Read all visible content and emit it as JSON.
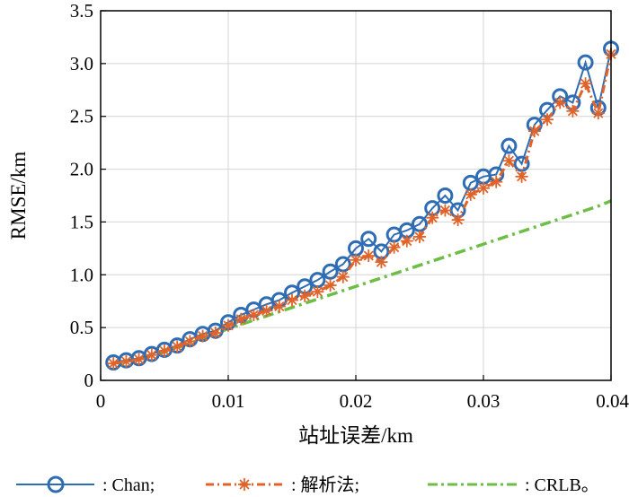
{
  "chart_data": {
    "type": "line",
    "xlabel": "站址误差/km",
    "ylabel": "RMSE/km",
    "xlim": [
      0,
      0.04
    ],
    "ylim": [
      0,
      3.5
    ],
    "x_ticks": [
      "0",
      "0.01",
      "0.02",
      "0.03",
      "0.04"
    ],
    "y_ticks": [
      "0",
      "0.5",
      "1.0",
      "1.5",
      "2.0",
      "2.5",
      "3.0",
      "3.5"
    ],
    "grid": true,
    "legend_position": "bottom",
    "x": [
      0.001,
      0.002,
      0.003,
      0.004,
      0.005,
      0.006,
      0.007,
      0.008,
      0.009,
      0.01,
      0.011,
      0.012,
      0.013,
      0.014,
      0.015,
      0.016,
      0.017,
      0.018,
      0.019,
      0.02,
      0.021,
      0.022,
      0.023,
      0.024,
      0.025,
      0.026,
      0.027,
      0.028,
      0.029,
      0.03,
      0.031,
      0.032,
      0.033,
      0.034,
      0.035,
      0.036,
      0.037,
      0.038,
      0.039,
      0.04
    ],
    "series": [
      {
        "name": "Chan",
        "legend_label": ": Chan;",
        "color": "#2E6DB4",
        "marker": "circle",
        "values": [
          0.17,
          0.19,
          0.21,
          0.25,
          0.29,
          0.33,
          0.39,
          0.44,
          0.47,
          0.55,
          0.62,
          0.67,
          0.72,
          0.76,
          0.83,
          0.89,
          0.95,
          1.03,
          1.1,
          1.25,
          1.34,
          1.22,
          1.38,
          1.42,
          1.48,
          1.63,
          1.75,
          1.61,
          1.87,
          1.93,
          1.95,
          2.22,
          2.05,
          2.42,
          2.56,
          2.69,
          2.63,
          3.01,
          2.58,
          3.14
        ]
      },
      {
        "name": "解析法",
        "legend_label": ": 解析法;",
        "color": "#E0642A",
        "marker": "asterisk",
        "values": [
          0.16,
          0.18,
          0.2,
          0.24,
          0.28,
          0.32,
          0.37,
          0.42,
          0.45,
          0.52,
          0.58,
          0.62,
          0.66,
          0.7,
          0.76,
          0.8,
          0.84,
          0.9,
          0.98,
          1.14,
          1.18,
          1.12,
          1.26,
          1.32,
          1.36,
          1.54,
          1.61,
          1.52,
          1.76,
          1.82,
          1.88,
          2.08,
          1.93,
          2.36,
          2.47,
          2.63,
          2.55,
          2.81,
          2.53,
          3.09
        ]
      },
      {
        "name": "CRLB",
        "legend_label": ": CRLB。",
        "color": "#6DBE45",
        "marker": "none",
        "values": [
          0.16,
          0.18,
          0.2,
          0.23,
          0.27,
          0.31,
          0.35,
          0.4,
          0.44,
          0.49,
          0.53,
          0.57,
          0.61,
          0.65,
          0.69,
          0.73,
          0.77,
          0.81,
          0.85,
          0.89,
          0.93,
          0.97,
          1.01,
          1.05,
          1.09,
          1.13,
          1.17,
          1.21,
          1.25,
          1.29,
          1.33,
          1.37,
          1.41,
          1.45,
          1.49,
          1.53,
          1.57,
          1.61,
          1.65,
          1.7
        ]
      }
    ]
  }
}
